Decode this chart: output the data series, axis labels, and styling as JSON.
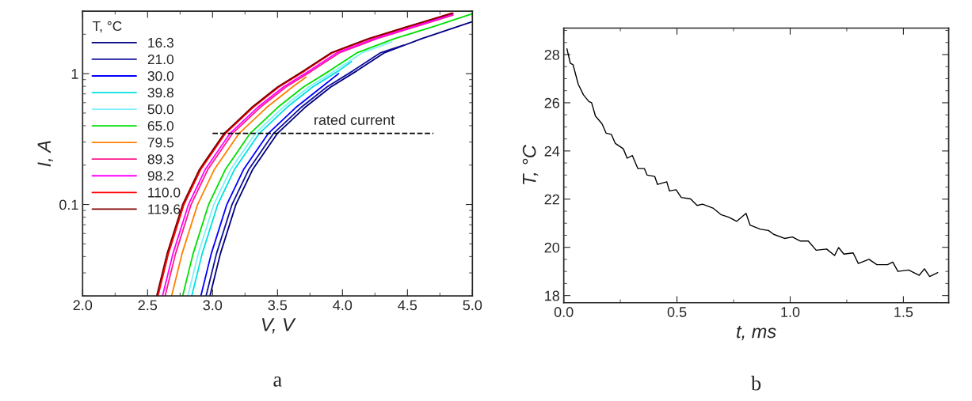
{
  "chart_data": [
    {
      "type": "line",
      "xlabel": "V, V",
      "ylabel": "I, A",
      "legend_title": "T, °C",
      "legend": "top left",
      "log": "y",
      "grid": false,
      "xlim": [
        2.0,
        5.0
      ],
      "ylim": [
        0.02,
        3
      ],
      "xticks": [
        {
          "value": 2.0,
          "label": "2.0"
        },
        {
          "value": 2.5,
          "label": "2.5"
        },
        {
          "value": 3.0,
          "label": "3.0"
        },
        {
          "value": 3.5,
          "label": "3.5"
        },
        {
          "value": 4.0,
          "label": "4.0"
        },
        {
          "value": 4.5,
          "label": "4.5"
        },
        {
          "value": 5.0,
          "label": "5.0"
        }
      ],
      "yticks": [
        0.1,
        1
      ],
      "annotations": [
        {
          "text": "rated current",
          "x": 4.09,
          "y": 0.35
        },
        "a"
      ],
      "series": [
        {
          "name": "16.3",
          "color": "#000080",
          "x": [
            2.98,
            3.06,
            3.18,
            3.31,
            3.5,
            3.71,
            3.91,
            4.11,
            4.32,
            4.61,
            5.0
          ],
          "values": [
            0.02,
            0.042,
            0.1,
            0.186,
            0.35,
            0.55,
            0.79,
            1.05,
            1.44,
            1.85,
            2.5
          ]
        },
        {
          "name": "21.0",
          "color": "#10109a",
          "x": [
            2.95,
            3.03,
            3.15,
            3.28,
            3.47,
            3.68,
            3.88,
            4.08,
            4.29,
            4.47
          ],
          "values": [
            0.02,
            0.042,
            0.1,
            0.186,
            0.35,
            0.55,
            0.79,
            1.05,
            1.44,
            1.65
          ]
        },
        {
          "name": "30.0",
          "color": "#0000ff",
          "x": [
            2.91,
            2.99,
            3.11,
            3.24,
            3.43,
            3.64,
            3.84,
            3.97
          ],
          "values": [
            0.02,
            0.042,
            0.1,
            0.186,
            0.35,
            0.55,
            0.79,
            1.0
          ]
        },
        {
          "name": "39.8",
          "color": "#00e0e0",
          "x": [
            2.84,
            2.92,
            3.04,
            3.17,
            3.36,
            3.57,
            3.77,
            3.97,
            4.07
          ],
          "values": [
            0.02,
            0.042,
            0.1,
            0.186,
            0.35,
            0.55,
            0.79,
            1.05,
            1.24
          ]
        },
        {
          "name": "50.0",
          "color": "#80f0f8",
          "x": [
            2.81,
            2.89,
            3.01,
            3.14,
            3.33,
            3.54,
            3.74,
            3.94,
            4.15,
            4.38
          ],
          "values": [
            0.02,
            0.042,
            0.1,
            0.186,
            0.35,
            0.55,
            0.79,
            1.05,
            1.44,
            1.75
          ]
        },
        {
          "name": "65.0",
          "color": "#00e000",
          "x": [
            2.77,
            2.85,
            2.97,
            3.1,
            3.29,
            3.5,
            3.7,
            3.9,
            4.11,
            4.4,
            4.7,
            5.0
          ],
          "values": [
            0.02,
            0.042,
            0.1,
            0.186,
            0.35,
            0.55,
            0.79,
            1.05,
            1.44,
            1.85,
            2.29,
            2.87
          ]
        },
        {
          "name": "79.5",
          "color": "#ff8000",
          "x": [
            2.685,
            2.765,
            2.885,
            3.015,
            3.205,
            3.415,
            3.615,
            3.72
          ],
          "values": [
            0.02,
            0.042,
            0.1,
            0.186,
            0.35,
            0.55,
            0.79,
            0.94
          ]
        },
        {
          "name": "89.3",
          "color": "#ff1a8c",
          "x": [
            2.635,
            2.715,
            2.835,
            2.965,
            3.155,
            3.365,
            3.565,
            3.765,
            3.975,
            4.265,
            4.565,
            4.85
          ],
          "values": [
            0.02,
            0.042,
            0.1,
            0.186,
            0.35,
            0.55,
            0.79,
            1.05,
            1.44,
            1.85,
            2.29,
            2.8
          ]
        },
        {
          "name": "98.2",
          "color": "#ff00ff",
          "x": [
            2.615,
            2.695,
            2.815,
            2.945,
            3.135,
            3.345,
            3.545,
            3.745,
            3.955,
            4.245,
            4.545,
            4.85
          ],
          "values": [
            0.02,
            0.042,
            0.1,
            0.186,
            0.35,
            0.55,
            0.79,
            1.05,
            1.44,
            1.85,
            2.29,
            2.85
          ]
        },
        {
          "name": "110.0",
          "color": "#ff0000",
          "x": [
            2.58,
            2.66,
            2.78,
            2.91,
            3.1,
            3.31,
            3.51,
            3.71,
            3.92,
            4.21,
            4.51,
            4.84
          ],
          "values": [
            0.02,
            0.042,
            0.1,
            0.186,
            0.35,
            0.55,
            0.79,
            1.05,
            1.44,
            1.85,
            2.29,
            2.9
          ]
        },
        {
          "name": "119.6",
          "color": "#800000",
          "x": [
            2.57,
            2.65,
            2.77,
            2.9,
            3.09,
            3.3,
            3.5,
            3.7,
            3.91,
            4.2,
            4.5,
            4.85
          ],
          "values": [
            0.02,
            0.042,
            0.1,
            0.186,
            0.35,
            0.55,
            0.79,
            1.05,
            1.44,
            1.85,
            2.29,
            2.9
          ]
        },
        {
          "color": "#000000",
          "line_style": "dashed",
          "x": [
            3.0,
            4.7
          ],
          "values": [
            0.35,
            0.35
          ]
        }
      ]
    },
    {
      "type": "line",
      "xlabel": "t, ms",
      "ylabel": "T, °C",
      "grid": false,
      "xlim": [
        0,
        1.7
      ],
      "ylim": [
        17.7,
        29.1
      ],
      "xticks": [
        {
          "value": 0.0,
          "label": "0.0"
        },
        {
          "value": 0.5,
          "label": "0.5"
        },
        {
          "value": 1.0,
          "label": "1.0"
        },
        {
          "value": 1.5,
          "label": "1.5"
        }
      ],
      "yticks": [
        18,
        20,
        22,
        24,
        26,
        28
      ],
      "annotations": [
        "b"
      ],
      "series": [
        {
          "color": "#000000",
          "x": [
            0.014,
            0.029,
            0.041,
            0.064,
            0.087,
            0.111,
            0.123,
            0.14,
            0.169,
            0.187,
            0.21,
            0.228,
            0.263,
            0.28,
            0.303,
            0.327,
            0.356,
            0.368,
            0.402,
            0.414,
            0.455,
            0.467,
            0.496,
            0.519,
            0.56,
            0.589,
            0.613,
            0.659,
            0.694,
            0.729,
            0.764,
            0.805,
            0.823,
            0.869,
            0.904,
            0.927,
            0.975,
            1.01,
            1.045,
            1.08,
            1.115,
            1.161,
            1.196,
            1.214,
            1.237,
            1.278,
            1.301,
            1.348,
            1.383,
            1.43,
            1.453,
            1.476,
            1.523,
            1.57,
            1.593,
            1.616,
            1.652
          ],
          "values": [
            28.24,
            27.64,
            27.58,
            26.77,
            26.33,
            26.05,
            26.0,
            25.45,
            25.13,
            24.74,
            24.69,
            24.31,
            24.09,
            23.7,
            23.81,
            23.27,
            23.27,
            23.0,
            22.94,
            22.61,
            22.72,
            22.34,
            22.39,
            22.07,
            22.01,
            21.74,
            21.79,
            21.63,
            21.36,
            21.25,
            21.08,
            21.41,
            20.92,
            20.75,
            20.7,
            20.54,
            20.37,
            20.43,
            20.26,
            20.26,
            19.88,
            19.93,
            19.66,
            19.99,
            19.72,
            19.77,
            19.33,
            19.5,
            19.28,
            19.28,
            19.39,
            19.0,
            19.06,
            18.84,
            19.11,
            18.79,
            18.95
          ]
        }
      ]
    }
  ]
}
